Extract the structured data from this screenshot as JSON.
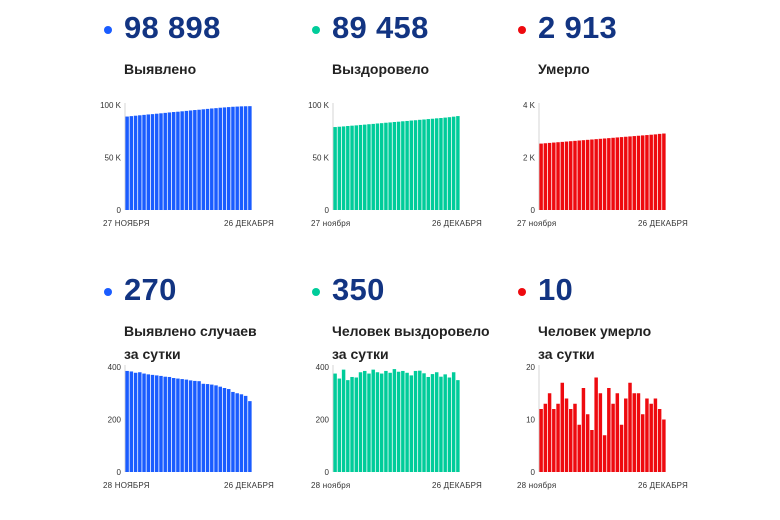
{
  "colors": {
    "blue": "#1a5cff",
    "green": "#00cc9a",
    "red": "#ee0a0f",
    "number": "#123482"
  },
  "panels": [
    {
      "value": "98 898",
      "label_lines": [
        "Выявлено"
      ],
      "color": "blue"
    },
    {
      "value": "89 458",
      "label_lines": [
        "Выздоровело"
      ],
      "color": "green"
    },
    {
      "value": "2 913",
      "label_lines": [
        "Умерло"
      ],
      "color": "red"
    },
    {
      "value": "270",
      "label_lines": [
        "Выявлено случаев",
        "за сутки"
      ],
      "color": "blue"
    },
    {
      "value": "350",
      "label_lines": [
        "Человек выздоровело",
        "за сутки"
      ],
      "color": "green"
    },
    {
      "value": "10",
      "label_lines": [
        "Человек умерло",
        "за сутки"
      ],
      "color": "red"
    }
  ],
  "chart_data": [
    {
      "type": "bar",
      "series_color": "blue",
      "x_start_label": "27 НОЯБРЯ",
      "x_end_label": "26 ДЕКАБРЯ",
      "yticks": [
        0,
        50000,
        100000
      ],
      "ytick_labels": [
        "0",
        "50 K",
        "100 K"
      ],
      "ylim": [
        0,
        100000
      ],
      "values": [
        89000,
        89400,
        89800,
        90200,
        90600,
        91000,
        91300,
        91700,
        92100,
        92500,
        92900,
        93300,
        93600,
        94000,
        94400,
        94800,
        95200,
        95500,
        95900,
        96300,
        96700,
        97000,
        97400,
        97700,
        98000,
        98300,
        98500,
        98700,
        98800,
        98898
      ]
    },
    {
      "type": "bar",
      "series_color": "green",
      "x_start_label": "27 ноября",
      "x_end_label": "26 ДЕКАБРЯ",
      "yticks": [
        0,
        50000,
        100000
      ],
      "ytick_labels": [
        "0",
        "50 K",
        "100 K"
      ],
      "ylim": [
        0,
        100000
      ],
      "values": [
        79000,
        79300,
        79600,
        80000,
        80300,
        80600,
        81000,
        81300,
        81700,
        82000,
        82400,
        82700,
        83100,
        83400,
        83800,
        84100,
        84500,
        84800,
        85200,
        85500,
        85900,
        86200,
        86600,
        86900,
        87300,
        87600,
        88000,
        88400,
        88900,
        89458
      ]
    },
    {
      "type": "bar",
      "series_color": "red",
      "x_start_label": "27 ноября",
      "x_end_label": "26 ДЕКАБРЯ",
      "yticks": [
        0,
        2000,
        4000
      ],
      "ytick_labels": [
        "0",
        "2 K",
        "4 K"
      ],
      "ylim": [
        0,
        4000
      ],
      "values": [
        2530,
        2543,
        2556,
        2569,
        2582,
        2595,
        2608,
        2621,
        2634,
        2647,
        2660,
        2673,
        2686,
        2699,
        2712,
        2725,
        2738,
        2751,
        2764,
        2777,
        2790,
        2803,
        2816,
        2829,
        2842,
        2855,
        2868,
        2881,
        2900,
        2913
      ]
    },
    {
      "type": "bar",
      "series_color": "blue",
      "x_start_label": "28 НОЯБРЯ",
      "x_end_label": "26 ДЕКАБРЯ",
      "yticks": [
        0,
        200,
        400
      ],
      "ytick_labels": [
        "0",
        "200",
        "400"
      ],
      "ylim": [
        0,
        400
      ],
      "values": [
        385,
        383,
        378,
        380,
        375,
        372,
        370,
        368,
        366,
        363,
        362,
        358,
        356,
        354,
        352,
        349,
        347,
        346,
        336,
        335,
        333,
        330,
        325,
        320,
        316,
        305,
        300,
        296,
        290,
        270
      ]
    },
    {
      "type": "bar",
      "series_color": "green",
      "x_start_label": "28 ноября",
      "x_end_label": "26 ДЕКАБРЯ",
      "yticks": [
        0,
        200,
        400
      ],
      "ytick_labels": [
        "0",
        "200",
        "400"
      ],
      "ylim": [
        0,
        400
      ],
      "values": [
        375,
        356,
        390,
        350,
        362,
        360,
        380,
        385,
        375,
        390,
        380,
        375,
        385,
        378,
        392,
        382,
        385,
        378,
        368,
        385,
        386,
        376,
        362,
        373,
        380,
        363,
        372,
        360,
        380,
        350
      ]
    },
    {
      "type": "bar",
      "series_color": "red",
      "x_start_label": "28 ноября",
      "x_end_label": "26 ДЕКАБРЯ",
      "yticks": [
        0,
        10,
        20
      ],
      "ytick_labels": [
        "0",
        "10",
        "20"
      ],
      "ylim": [
        0,
        20
      ],
      "values": [
        12,
        13,
        15,
        12,
        13,
        17,
        14,
        12,
        13,
        9,
        16,
        11,
        8,
        18,
        15,
        7,
        16,
        13,
        15,
        9,
        14,
        17,
        15,
        15,
        11,
        14,
        13,
        14,
        12,
        10
      ]
    }
  ]
}
